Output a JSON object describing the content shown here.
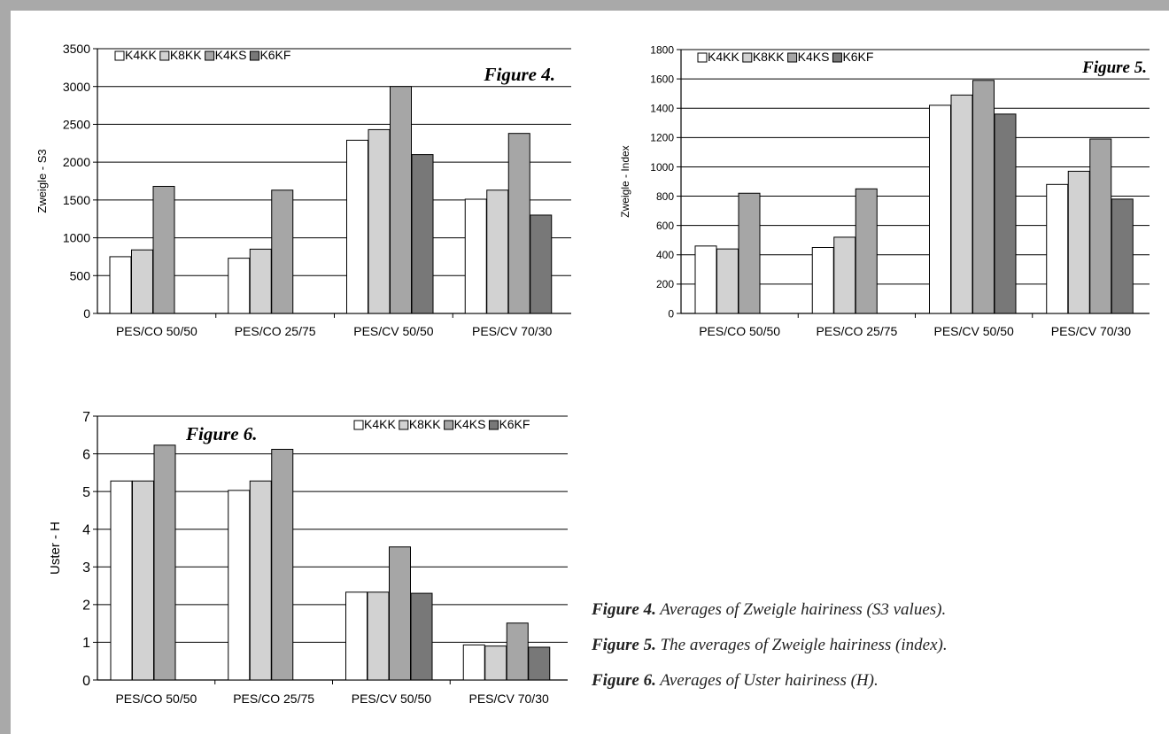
{
  "colors": {
    "K4KK": "#ffffff",
    "K8KK": "#d2d2d2",
    "K4KS": "#a6a6a6",
    "K6KF": "#787878",
    "frame": "#a9a9a9"
  },
  "captions": [
    {
      "label": "Figure 4.",
      "text": " Averages of Zweigle hairiness (S3 values)."
    },
    {
      "label": "Figure 5.",
      "text": " The averages of Zweigle hairiness (index)."
    },
    {
      "label": "Figure 6.",
      "text": " Averages of Uster hairiness (H)."
    }
  ],
  "chart_data": [
    {
      "type": "bar",
      "title": "Figure 4.",
      "xlabel": "",
      "ylabel": "Zweigle - S3",
      "ylim": [
        0,
        3500
      ],
      "yticks": [
        0,
        500,
        1000,
        1500,
        2000,
        2500,
        3000,
        3500
      ],
      "grid": true,
      "legend": "top-left",
      "categories": [
        "PES/CO 50/50",
        "PES/CO 25/75",
        "PES/CV 50/50",
        "PES/CV 70/30"
      ],
      "series": [
        {
          "name": "K4KK",
          "values": [
            750,
            730,
            2290,
            1510
          ]
        },
        {
          "name": "K8KK",
          "values": [
            840,
            850,
            2430,
            1630
          ]
        },
        {
          "name": "K4KS",
          "values": [
            1680,
            1630,
            3000,
            2380
          ]
        },
        {
          "name": "K6KF",
          "values": [
            null,
            null,
            2100,
            1300
          ]
        }
      ]
    },
    {
      "type": "bar",
      "title": "Figure 5.",
      "xlabel": "",
      "ylabel": "Zweigle - Index",
      "ylim": [
        0,
        1800
      ],
      "yticks": [
        0,
        200,
        400,
        600,
        800,
        1000,
        1200,
        1400,
        1600,
        1800
      ],
      "grid": true,
      "legend": "top-left",
      "categories": [
        "PES/CO 50/50",
        "PES/CO 25/75",
        "PES/CV 50/50",
        "PES/CV 70/30"
      ],
      "series": [
        {
          "name": "K4KK",
          "values": [
            460,
            450,
            1420,
            880
          ]
        },
        {
          "name": "K8KK",
          "values": [
            440,
            520,
            1490,
            970
          ]
        },
        {
          "name": "K4KS",
          "values": [
            820,
            850,
            1590,
            1190
          ]
        },
        {
          "name": "K6KF",
          "values": [
            null,
            null,
            1360,
            780
          ]
        }
      ]
    },
    {
      "type": "bar",
      "title": "Figure 6.",
      "xlabel": "",
      "ylabel": "Uster - H",
      "ylim": [
        0,
        7
      ],
      "yticks": [
        0,
        1,
        2,
        3,
        4,
        5,
        6,
        7
      ],
      "grid": true,
      "legend": "top-right",
      "categories": [
        "PES/CO 50/50",
        "PES/CO 25/75",
        "PES/CV 50/50",
        "PES/CV 70/30"
      ],
      "series": [
        {
          "name": "K4KK",
          "values": [
            5.28,
            5.03,
            2.33,
            0.93
          ]
        },
        {
          "name": "K8KK",
          "values": [
            5.28,
            5.28,
            2.33,
            0.9
          ]
        },
        {
          "name": "K4KS",
          "values": [
            6.23,
            6.12,
            3.53,
            1.51
          ]
        },
        {
          "name": "K6KF",
          "values": [
            null,
            null,
            2.3,
            0.87
          ]
        }
      ]
    }
  ]
}
